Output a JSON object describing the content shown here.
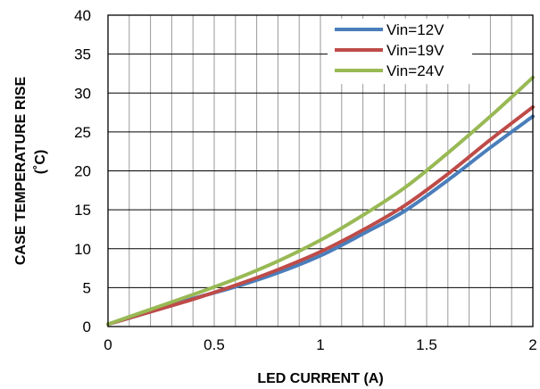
{
  "chart_data": {
    "type": "line",
    "title": "",
    "xlabel": "LED CURRENT  (A)",
    "ylabel_line1": "CASE TEMPERATURE  RISE",
    "ylabel_line2": "(˚C)",
    "xlim": [
      0,
      2
    ],
    "ylim": [
      0,
      40
    ],
    "x_ticks": [
      0,
      0.5,
      1,
      1.5,
      2
    ],
    "x_tick_labels": [
      "0",
      "0.5",
      "1",
      "1.5",
      "2"
    ],
    "y_ticks": [
      0,
      5,
      10,
      15,
      20,
      25,
      30,
      35,
      40
    ],
    "y_tick_labels": [
      "0",
      "5",
      "10",
      "15",
      "20",
      "25",
      "30",
      "35",
      "40"
    ],
    "x_minor_step": 0.1,
    "grid": true,
    "legend_position": "top-right",
    "series": [
      {
        "name": "Vin=12V",
        "color": "#4a7ebb",
        "x": [
          0,
          0.2,
          0.4,
          0.6,
          0.8,
          1.0,
          1.2,
          1.4,
          1.6,
          1.8,
          2.0
        ],
        "y": [
          0.3,
          1.9,
          3.6,
          5.1,
          6.9,
          9.1,
          11.9,
          14.9,
          18.8,
          23.0,
          27.0
        ]
      },
      {
        "name": "Vin=19V",
        "color": "#be4b48",
        "x": [
          0,
          0.2,
          0.4,
          0.6,
          0.8,
          1.0,
          1.2,
          1.4,
          1.6,
          1.8,
          2.0
        ],
        "y": [
          0.3,
          1.9,
          3.5,
          5.3,
          7.3,
          9.6,
          12.4,
          15.6,
          19.6,
          24.0,
          28.2
        ]
      },
      {
        "name": "Vin=24V",
        "color": "#98b954",
        "x": [
          0,
          0.2,
          0.4,
          0.6,
          0.8,
          1.0,
          1.2,
          1.4,
          1.6,
          1.8,
          2.0
        ],
        "y": [
          0.3,
          2.2,
          4.1,
          6.1,
          8.4,
          11.1,
          14.3,
          17.9,
          22.3,
          27.0,
          32.0
        ]
      }
    ]
  }
}
